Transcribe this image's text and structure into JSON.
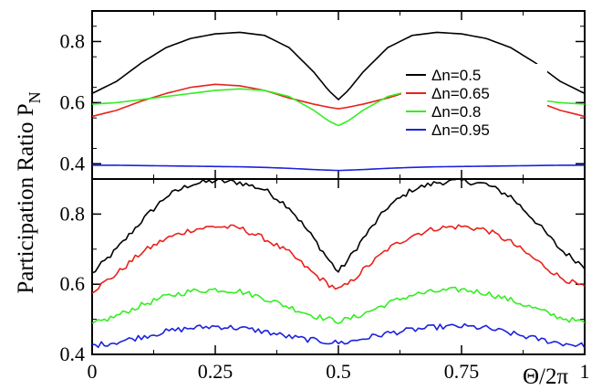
{
  "chart_data": [
    {
      "type": "line",
      "panel": "top",
      "ylabel": "Participation Ratio P",
      "ylabel_subscript": "N",
      "xlim": [
        0,
        1
      ],
      "ylim": [
        0.35,
        0.9
      ],
      "yticks": [
        0.4,
        0.6,
        0.8
      ],
      "ytick_labels": [
        "0.4",
        "0.6",
        "0.8"
      ],
      "legend_position": "right",
      "x": [
        0,
        0.05,
        0.1,
        0.15,
        0.2,
        0.25,
        0.3,
        0.35,
        0.4,
        0.45,
        0.48,
        0.5,
        0.52,
        0.55,
        0.6,
        0.65,
        0.7,
        0.75,
        0.8,
        0.85,
        0.9,
        0.95,
        1.0
      ],
      "series": [
        {
          "name": "Δn=0.5",
          "color": "#000000",
          "values": [
            0.63,
            0.67,
            0.73,
            0.78,
            0.81,
            0.825,
            0.83,
            0.82,
            0.78,
            0.7,
            0.64,
            0.61,
            0.64,
            0.7,
            0.78,
            0.82,
            0.83,
            0.825,
            0.81,
            0.78,
            0.73,
            0.67,
            0.63
          ]
        },
        {
          "name": "Δn=0.65",
          "color": "#e8221b",
          "values": [
            0.555,
            0.575,
            0.605,
            0.63,
            0.65,
            0.66,
            0.655,
            0.64,
            0.615,
            0.595,
            0.585,
            0.58,
            0.585,
            0.595,
            0.615,
            0.64,
            0.655,
            0.66,
            0.65,
            0.63,
            0.605,
            0.575,
            0.555
          ]
        },
        {
          "name": "Δn=0.8",
          "color": "#33ee22",
          "values": [
            0.595,
            0.6,
            0.61,
            0.62,
            0.63,
            0.64,
            0.645,
            0.64,
            0.62,
            0.575,
            0.54,
            0.525,
            0.54,
            0.575,
            0.62,
            0.64,
            0.645,
            0.64,
            0.63,
            0.62,
            0.61,
            0.6,
            0.595
          ]
        },
        {
          "name": "Δn=0.95",
          "color": "#1c22dd",
          "values": [
            0.395,
            0.395,
            0.394,
            0.393,
            0.392,
            0.391,
            0.39,
            0.388,
            0.385,
            0.381,
            0.379,
            0.378,
            0.379,
            0.381,
            0.385,
            0.388,
            0.39,
            0.391,
            0.392,
            0.393,
            0.394,
            0.395,
            0.395
          ]
        }
      ]
    },
    {
      "type": "line",
      "panel": "bottom",
      "xlabel": "Θ/2π",
      "xlim": [
        0,
        1
      ],
      "ylim": [
        0.4,
        0.9
      ],
      "xticks": [
        0,
        0.25,
        0.5,
        0.75,
        1
      ],
      "xtick_labels": [
        "0",
        "0.25",
        "0.5",
        "0.75",
        "1"
      ],
      "yticks": [
        0.4,
        0.6,
        0.8
      ],
      "ytick_labels": [
        "0.4",
        "0.6",
        "0.8"
      ],
      "noisy": true,
      "x": [
        0,
        0.05,
        0.1,
        0.15,
        0.2,
        0.25,
        0.3,
        0.35,
        0.4,
        0.45,
        0.48,
        0.5,
        0.52,
        0.55,
        0.6,
        0.65,
        0.7,
        0.75,
        0.8,
        0.85,
        0.9,
        0.95,
        1.0
      ],
      "series": [
        {
          "name": "Δn=0.5",
          "color": "#000000",
          "values": [
            0.63,
            0.7,
            0.78,
            0.85,
            0.885,
            0.895,
            0.89,
            0.87,
            0.82,
            0.73,
            0.67,
            0.635,
            0.67,
            0.73,
            0.82,
            0.87,
            0.89,
            0.895,
            0.885,
            0.85,
            0.78,
            0.7,
            0.65
          ]
        },
        {
          "name": "Δn=0.65",
          "color": "#e8221b",
          "values": [
            0.58,
            0.63,
            0.69,
            0.73,
            0.755,
            0.765,
            0.76,
            0.73,
            0.69,
            0.63,
            0.6,
            0.585,
            0.6,
            0.64,
            0.7,
            0.74,
            0.76,
            0.765,
            0.755,
            0.72,
            0.67,
            0.62,
            0.59
          ]
        },
        {
          "name": "Δn=0.8",
          "color": "#33ee22",
          "values": [
            0.485,
            0.51,
            0.54,
            0.565,
            0.58,
            0.585,
            0.58,
            0.56,
            0.535,
            0.51,
            0.5,
            0.495,
            0.5,
            0.515,
            0.545,
            0.57,
            0.58,
            0.585,
            0.575,
            0.555,
            0.53,
            0.505,
            0.49
          ]
        },
        {
          "name": "Δn=0.95",
          "color": "#1c22dd",
          "values": [
            0.425,
            0.435,
            0.45,
            0.465,
            0.475,
            0.48,
            0.475,
            0.465,
            0.45,
            0.44,
            0.435,
            0.433,
            0.435,
            0.445,
            0.46,
            0.47,
            0.478,
            0.48,
            0.475,
            0.46,
            0.445,
            0.432,
            0.425
          ]
        }
      ]
    }
  ]
}
